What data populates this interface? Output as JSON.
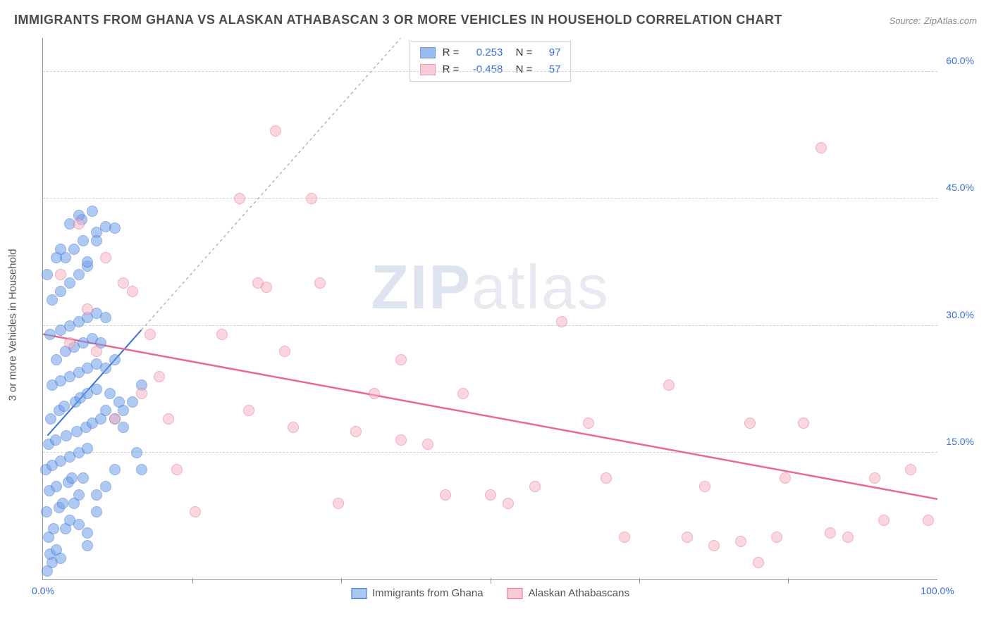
{
  "title": "IMMIGRANTS FROM GHANA VS ALASKAN ATHABASCAN 3 OR MORE VEHICLES IN HOUSEHOLD CORRELATION CHART",
  "source_label": "Source:",
  "source_name": "ZipAtlas.com",
  "y_axis_label": "3 or more Vehicles in Household",
  "watermark_a": "ZIP",
  "watermark_b": "atlas",
  "chart": {
    "type": "scatter",
    "xlim": [
      0,
      100
    ],
    "ylim": [
      0,
      64
    ],
    "x_ticks": [
      0,
      100
    ],
    "x_tick_labels": [
      "0.0%",
      "100.0%"
    ],
    "x_minor_ticks": [
      16.67,
      33.33,
      50,
      66.67,
      83.33
    ],
    "y_ticks": [
      15,
      30,
      45,
      60
    ],
    "y_tick_labels": [
      "15.0%",
      "30.0%",
      "45.0%",
      "60.0%"
    ],
    "background_color": "#ffffff",
    "grid_color": "#d0d0d0",
    "axis_color": "#999999",
    "tick_label_color": "#3b6fd4",
    "marker_radius": 8,
    "marker_opacity": 0.55,
    "series": [
      {
        "name": "Immigrants from Ghana",
        "fill": "#6fa0e8",
        "stroke": "#3b6fd4",
        "r_label": "R =",
        "r_value": "0.253",
        "n_label": "N =",
        "n_value": "97",
        "trend": {
          "x1": 0.5,
          "y1": 17,
          "x2": 40,
          "y2": 64,
          "dash": true,
          "solid_until_x": 11,
          "color": "#3b6fd4",
          "width": 2
        },
        "points": [
          [
            0.5,
            1
          ],
          [
            1,
            2
          ],
          [
            0.8,
            3
          ],
          [
            1.5,
            3.5
          ],
          [
            2,
            2.5
          ],
          [
            0.6,
            5
          ],
          [
            1.2,
            6
          ],
          [
            2.5,
            6
          ],
          [
            3,
            7
          ],
          [
            0.4,
            8
          ],
          [
            1.8,
            8.5
          ],
          [
            2.2,
            9
          ],
          [
            3.5,
            9
          ],
          [
            4,
            10
          ],
          [
            0.7,
            10.5
          ],
          [
            1.5,
            11
          ],
          [
            2.8,
            11.5
          ],
          [
            3.2,
            12
          ],
          [
            4.5,
            12
          ],
          [
            5,
            5.5
          ],
          [
            0.3,
            13
          ],
          [
            1,
            13.5
          ],
          [
            2,
            14
          ],
          [
            3,
            14.5
          ],
          [
            4,
            15
          ],
          [
            5,
            15.5
          ],
          [
            6,
            10
          ],
          [
            0.6,
            16
          ],
          [
            1.4,
            16.5
          ],
          [
            2.6,
            17
          ],
          [
            3.8,
            17.5
          ],
          [
            4.8,
            18
          ],
          [
            5.5,
            18.5
          ],
          [
            6.5,
            19
          ],
          [
            7,
            20
          ],
          [
            8,
            19
          ],
          [
            0.9,
            19
          ],
          [
            1.8,
            20
          ],
          [
            2.4,
            20.5
          ],
          [
            3.6,
            21
          ],
          [
            4.2,
            21.5
          ],
          [
            5,
            22
          ],
          [
            6,
            22.5
          ],
          [
            7.5,
            22
          ],
          [
            8.5,
            21
          ],
          [
            1,
            23
          ],
          [
            2,
            23.5
          ],
          [
            3,
            24
          ],
          [
            4,
            24.5
          ],
          [
            5,
            25
          ],
          [
            6,
            25.5
          ],
          [
            7,
            25
          ],
          [
            8,
            26
          ],
          [
            9,
            20
          ],
          [
            1.5,
            26
          ],
          [
            2.5,
            27
          ],
          [
            3.5,
            27.5
          ],
          [
            4.5,
            28
          ],
          [
            5.5,
            28.5
          ],
          [
            6.5,
            28
          ],
          [
            0.8,
            29
          ],
          [
            2,
            29.5
          ],
          [
            3,
            30
          ],
          [
            4,
            30.5
          ],
          [
            5,
            31
          ],
          [
            6,
            31.5
          ],
          [
            7,
            31
          ],
          [
            1,
            33
          ],
          [
            2,
            34
          ],
          [
            3,
            35
          ],
          [
            4,
            36
          ],
          [
            5,
            37
          ],
          [
            2.5,
            38
          ],
          [
            3.5,
            39
          ],
          [
            4.5,
            40
          ],
          [
            6,
            41
          ],
          [
            7,
            41.7
          ],
          [
            4.3,
            42.5
          ],
          [
            3,
            42
          ],
          [
            4,
            43
          ],
          [
            5,
            37.5
          ],
          [
            2,
            39
          ],
          [
            6,
            40
          ],
          [
            8,
            41.5
          ],
          [
            5.5,
            43.5
          ],
          [
            0.5,
            36
          ],
          [
            1.5,
            38
          ],
          [
            11,
            23
          ],
          [
            10,
            21
          ],
          [
            9,
            18
          ],
          [
            10.5,
            15
          ],
          [
            11,
            13
          ],
          [
            5,
            4
          ],
          [
            4,
            6.5
          ],
          [
            6,
            8
          ],
          [
            7,
            11
          ],
          [
            8,
            13
          ]
        ]
      },
      {
        "name": "Alaskan Athabascans",
        "fill": "#f7b6c6",
        "stroke": "#e86a8e",
        "r_label": "R =",
        "r_value": "-0.458",
        "n_label": "N =",
        "n_value": "57",
        "trend": {
          "x1": 0,
          "y1": 29,
          "x2": 100,
          "y2": 9.5,
          "dash": false,
          "color": "#e86a8e",
          "width": 2.5
        },
        "points": [
          [
            3,
            28
          ],
          [
            4,
            42
          ],
          [
            5,
            32
          ],
          [
            6,
            27
          ],
          [
            7,
            38
          ],
          [
            8,
            19
          ],
          [
            9,
            35
          ],
          [
            10,
            34
          ],
          [
            11,
            22
          ],
          [
            12,
            29
          ],
          [
            14,
            19
          ],
          [
            15,
            13
          ],
          [
            17,
            8
          ],
          [
            20,
            29
          ],
          [
            22,
            45
          ],
          [
            23,
            20
          ],
          [
            24,
            35
          ],
          [
            25,
            34.5
          ],
          [
            26,
            53
          ],
          [
            27,
            27
          ],
          [
            28,
            18
          ],
          [
            30,
            45
          ],
          [
            33,
            9
          ],
          [
            35,
            17.5
          ],
          [
            37,
            22
          ],
          [
            40,
            26
          ],
          [
            40,
            16.5
          ],
          [
            43,
            16
          ],
          [
            47,
            22
          ],
          [
            50,
            10
          ],
          [
            52,
            9
          ],
          [
            55,
            11
          ],
          [
            58,
            30.5
          ],
          [
            61,
            18.5
          ],
          [
            63,
            12
          ],
          [
            70,
            23
          ],
          [
            72,
            5
          ],
          [
            74,
            11
          ],
          [
            75,
            4
          ],
          [
            78,
            4.5
          ],
          [
            79,
            18.5
          ],
          [
            80,
            2
          ],
          [
            82,
            5
          ],
          [
            83,
            12
          ],
          [
            85,
            18.5
          ],
          [
            87,
            51
          ],
          [
            88,
            5.5
          ],
          [
            90,
            5
          ],
          [
            93,
            12
          ],
          [
            94,
            7
          ],
          [
            97,
            13
          ],
          [
            99,
            7
          ],
          [
            2,
            36
          ],
          [
            13,
            24
          ],
          [
            31,
            35
          ],
          [
            45,
            10
          ],
          [
            65,
            5
          ]
        ]
      }
    ]
  },
  "legend_bottom": [
    {
      "label": "Immigrants from Ghana",
      "fill": "#a9c6f1",
      "stroke": "#3b6fd4"
    },
    {
      "label": "Alaskan Athabascans",
      "fill": "#f9cbd6",
      "stroke": "#e86a8e"
    }
  ]
}
